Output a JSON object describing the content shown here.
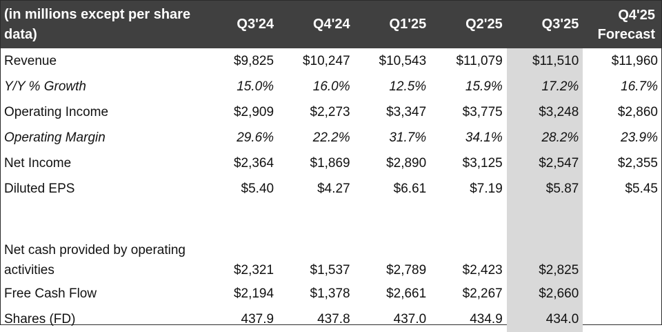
{
  "table": {
    "header_label": "(in millions except per share data)",
    "columns": [
      "Q3'24",
      "Q4'24",
      "Q1'25",
      "Q2'25",
      "Q3'25",
      "Q4'25 Forecast"
    ],
    "highlight_column": "Q3'25",
    "highlight_color": "#d9d9d9",
    "header_bg": "#404040",
    "rows": [
      {
        "label": "Revenue",
        "italic": false,
        "values": [
          "$9,825",
          "$10,247",
          "$10,543",
          "$11,079",
          "$11,510",
          "$11,960"
        ]
      },
      {
        "label": "Y/Y % Growth",
        "italic": true,
        "values": [
          "15.0%",
          "16.0%",
          "12.5%",
          "15.9%",
          "17.2%",
          "16.7%"
        ]
      },
      {
        "label": "Operating Income",
        "italic": false,
        "values": [
          "$2,909",
          "$2,273",
          "$3,347",
          "$3,775",
          "$3,248",
          "$2,860"
        ]
      },
      {
        "label": "Operating Margin",
        "italic": true,
        "values": [
          "29.6%",
          "22.2%",
          "31.7%",
          "34.1%",
          "28.2%",
          "23.9%"
        ]
      },
      {
        "label": "Net Income",
        "italic": false,
        "values": [
          "$2,364",
          "$1,869",
          "$2,890",
          "$3,125",
          "$2,547",
          "$2,355"
        ]
      },
      {
        "label": "Diluted EPS",
        "italic": false,
        "values": [
          "$5.40",
          "$4.27",
          "$6.61",
          "$7.19",
          "$5.87",
          "$5.45"
        ]
      },
      {
        "label": "Net cash provided by operating activities",
        "italic": false,
        "values": [
          "$2,321",
          "$1,537",
          "$2,789",
          "$2,423",
          "$2,825",
          ""
        ]
      },
      {
        "label": "Free Cash Flow",
        "italic": false,
        "values": [
          "$2,194",
          "$1,378",
          "$2,661",
          "$2,267",
          "$2,660",
          ""
        ]
      },
      {
        "label": "Shares (FD)",
        "italic": false,
        "values": [
          "437.9",
          "437.8",
          "437.0",
          "434.9",
          "434.0",
          ""
        ]
      }
    ]
  }
}
